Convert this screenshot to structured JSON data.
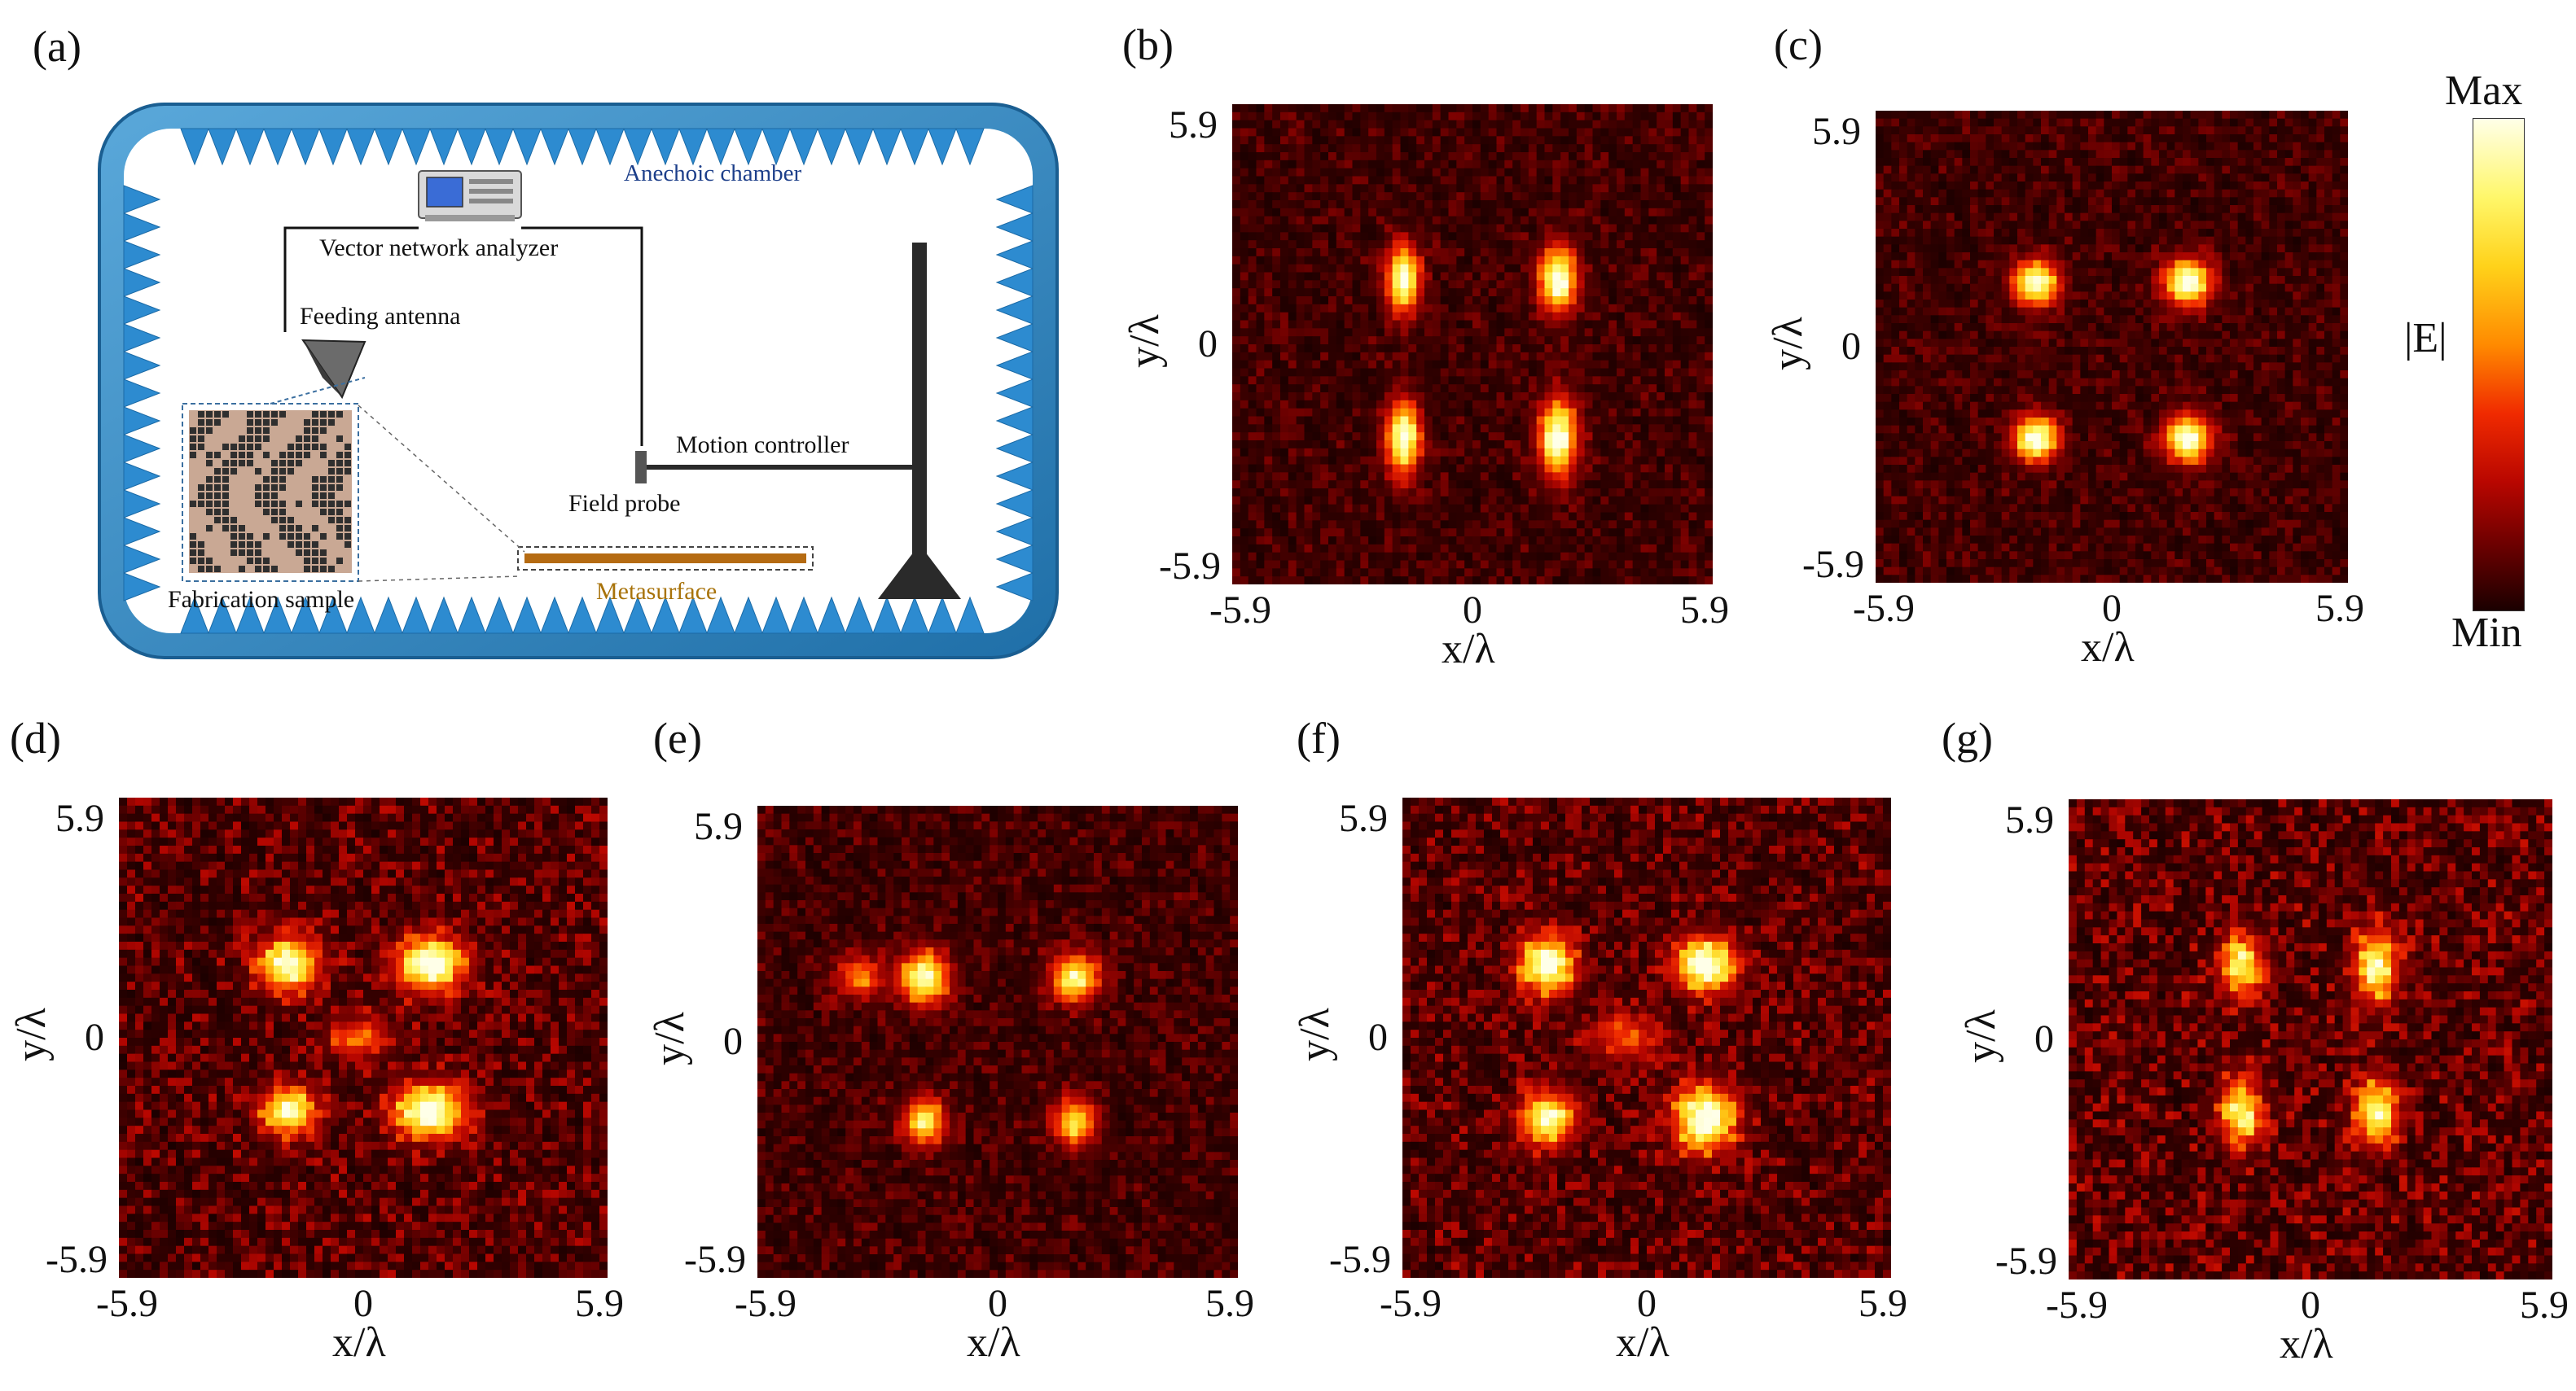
{
  "panel_labels": [
    "(a)",
    "(b)",
    "(c)",
    "(d)",
    "(e)",
    "(f)",
    "(g)"
  ],
  "diagram": {
    "chamber": "Anechoic chamber",
    "vna": "Vector network analyzer",
    "feed": "Feeding antenna",
    "motion": "Motion controller",
    "probe": "Field probe",
    "sample": "Fabrication sample",
    "meta": "Metasurface"
  },
  "axes": {
    "x_label": "x/λ",
    "y_label": "y/λ",
    "ticks": [
      "-5.9",
      "0",
      "5.9"
    ]
  },
  "colorbar": {
    "max": "Max",
    "min": "Min",
    "label": "|E|",
    "colors": [
      "#1b0000",
      "#6a0000",
      "#b80600",
      "#f02a00",
      "#ff8a00",
      "#ffd21a",
      "#fff76a",
      "#ffffe8"
    ]
  },
  "chart_data": [
    {
      "panel": "(b)",
      "type": "heatmap",
      "xlabel": "x/λ",
      "ylabel": "y/λ",
      "xlim": [
        -5.9,
        5.9
      ],
      "ylim": [
        -5.9,
        5.9
      ],
      "legend": "Max–Min |E| colorbar at right",
      "peaks": [
        {
          "x": -1.7,
          "y": 1.6,
          "v": 1.0,
          "sx": 0.28,
          "sy": 0.55
        },
        {
          "x": 2.1,
          "y": 1.6,
          "v": 1.0,
          "sx": 0.32,
          "sy": 0.55
        },
        {
          "x": -1.7,
          "y": -2.3,
          "v": 1.0,
          "sx": 0.28,
          "sy": 0.6
        },
        {
          "x": 2.1,
          "y": -2.3,
          "v": 1.0,
          "sx": 0.32,
          "sy": 0.65
        }
      ],
      "noise": 0.28,
      "seed": 11
    },
    {
      "panel": "(c)",
      "type": "heatmap",
      "xlabel": "x/λ",
      "ylabel": "y/λ",
      "xlim": [
        -5.9,
        5.9
      ],
      "ylim": [
        -5.9,
        5.9
      ],
      "peaks": [
        {
          "x": -1.9,
          "y": 1.6,
          "v": 1.0,
          "sx": 0.38,
          "sy": 0.38
        },
        {
          "x": 1.9,
          "y": 1.6,
          "v": 1.0,
          "sx": 0.4,
          "sy": 0.4
        },
        {
          "x": -1.9,
          "y": -2.3,
          "v": 1.0,
          "sx": 0.38,
          "sy": 0.38
        },
        {
          "x": 1.9,
          "y": -2.3,
          "v": 1.0,
          "sx": 0.4,
          "sy": 0.4
        }
      ],
      "noise": 0.28,
      "seed": 23
    },
    {
      "panel": "(d)",
      "type": "heatmap",
      "xlabel": "x/λ",
      "ylabel": "y/λ",
      "xlim": [
        -5.9,
        5.9
      ],
      "ylim": [
        -5.9,
        5.9
      ],
      "peaks": [
        {
          "x": -1.8,
          "y": 1.8,
          "v": 0.95,
          "sx": 0.5,
          "sy": 0.45
        },
        {
          "x": 1.6,
          "y": 1.8,
          "v": 1.0,
          "sx": 0.55,
          "sy": 0.45
        },
        {
          "x": -1.8,
          "y": -1.8,
          "v": 0.9,
          "sx": 0.45,
          "sy": 0.4
        },
        {
          "x": 1.6,
          "y": -1.8,
          "v": 1.0,
          "sx": 0.6,
          "sy": 0.45
        },
        {
          "x": -0.1,
          "y": 0.0,
          "v": 0.45,
          "sx": 0.5,
          "sy": 0.35
        }
      ],
      "noise": 0.5,
      "seed": 37
    },
    {
      "panel": "(e)",
      "type": "heatmap",
      "xlabel": "x/λ",
      "ylabel": "y/λ",
      "xlim": [
        -5.9,
        5.9
      ],
      "ylim": [
        -5.9,
        5.9
      ],
      "peaks": [
        {
          "x": -1.8,
          "y": 1.6,
          "v": 0.95,
          "sx": 0.4,
          "sy": 0.45
        },
        {
          "x": 1.9,
          "y": 1.6,
          "v": 0.85,
          "sx": 0.4,
          "sy": 0.4
        },
        {
          "x": -1.8,
          "y": -2.0,
          "v": 0.8,
          "sx": 0.35,
          "sy": 0.4
        },
        {
          "x": 1.9,
          "y": -2.0,
          "v": 0.75,
          "sx": 0.35,
          "sy": 0.4
        },
        {
          "x": -3.4,
          "y": 1.6,
          "v": 0.5,
          "sx": 0.4,
          "sy": 0.35
        }
      ],
      "noise": 0.32,
      "seed": 53
    },
    {
      "panel": "(f)",
      "type": "heatmap",
      "xlabel": "x/λ",
      "ylabel": "y/λ",
      "xlim": [
        -5.9,
        5.9
      ],
      "ylim": [
        -5.9,
        5.9
      ],
      "peaks": [
        {
          "x": -2.4,
          "y": 1.8,
          "v": 0.95,
          "sx": 0.45,
          "sy": 0.5
        },
        {
          "x": 1.4,
          "y": 1.8,
          "v": 1.0,
          "sx": 0.5,
          "sy": 0.45
        },
        {
          "x": -2.4,
          "y": -2.0,
          "v": 0.9,
          "sx": 0.45,
          "sy": 0.45
        },
        {
          "x": 1.4,
          "y": -2.0,
          "v": 1.0,
          "sx": 0.5,
          "sy": 0.55
        },
        {
          "x": -0.5,
          "y": 0.0,
          "v": 0.4,
          "sx": 0.6,
          "sy": 0.4
        }
      ],
      "noise": 0.5,
      "seed": 71
    },
    {
      "panel": "(g)",
      "type": "heatmap",
      "xlabel": "x/λ",
      "ylabel": "y/λ",
      "xlim": [
        -5.9,
        5.9
      ],
      "ylim": [
        -5.9,
        5.9
      ],
      "peaks": [
        {
          "x": -1.7,
          "y": 1.8,
          "v": 0.8,
          "sx": 0.35,
          "sy": 0.5
        },
        {
          "x": 1.6,
          "y": 1.8,
          "v": 0.85,
          "sx": 0.35,
          "sy": 0.6
        },
        {
          "x": -1.7,
          "y": -1.8,
          "v": 0.8,
          "sx": 0.35,
          "sy": 0.55
        },
        {
          "x": 1.6,
          "y": -1.8,
          "v": 0.85,
          "sx": 0.35,
          "sy": 0.55
        }
      ],
      "noise": 0.55,
      "seed": 97
    }
  ]
}
